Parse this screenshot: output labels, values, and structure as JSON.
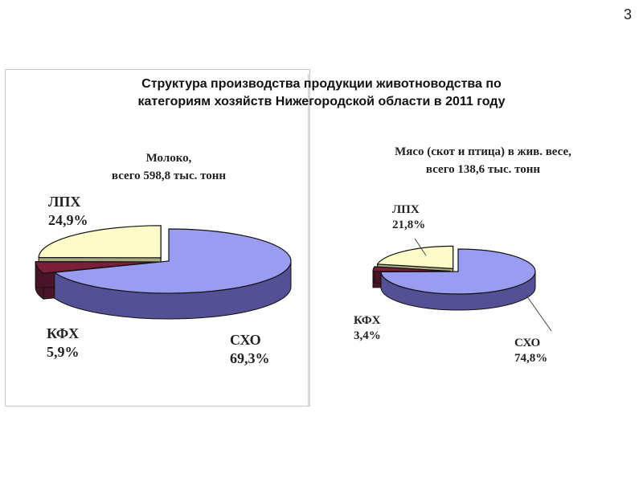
{
  "slide_number": "3",
  "title_line1": "Структура производства продукции животноводства по",
  "title_line2": "категориям хозяйств Нижегородской области в 2011 году",
  "chart_data": [
    {
      "type": "pie",
      "title_line1": "Молоко,",
      "title_line2": "всего 598,8 тыс. тонн",
      "categories": [
        "СХО",
        "КФХ",
        "ЛПХ"
      ],
      "values": [
        69.3,
        5.9,
        24.9
      ],
      "value_labels": [
        "69,3%",
        "5,9%",
        "24,9%"
      ],
      "colors": [
        "#9a9cf2",
        "#7a1e3a",
        "#fdfcc8"
      ],
      "side_colors": [
        "#535096",
        "#4b1328",
        "#a8a77e"
      ],
      "exploded": [
        false,
        true,
        true
      ]
    },
    {
      "type": "pie",
      "title_line1": "Мясо (скот и птица) в жив. весе,",
      "title_line2": "всего 138,6 тыс. тонн",
      "categories": [
        "СХО",
        "КФХ",
        "ЛПХ"
      ],
      "values": [
        74.8,
        3.4,
        21.8
      ],
      "value_labels": [
        "74,8%",
        "3,4%",
        "21,8%"
      ],
      "colors": [
        "#9a9cf2",
        "#7a1e3a",
        "#fdfcc8"
      ],
      "side_colors": [
        "#535096",
        "#4b1328",
        "#a8a77e"
      ],
      "exploded": [
        false,
        true,
        true
      ]
    }
  ]
}
